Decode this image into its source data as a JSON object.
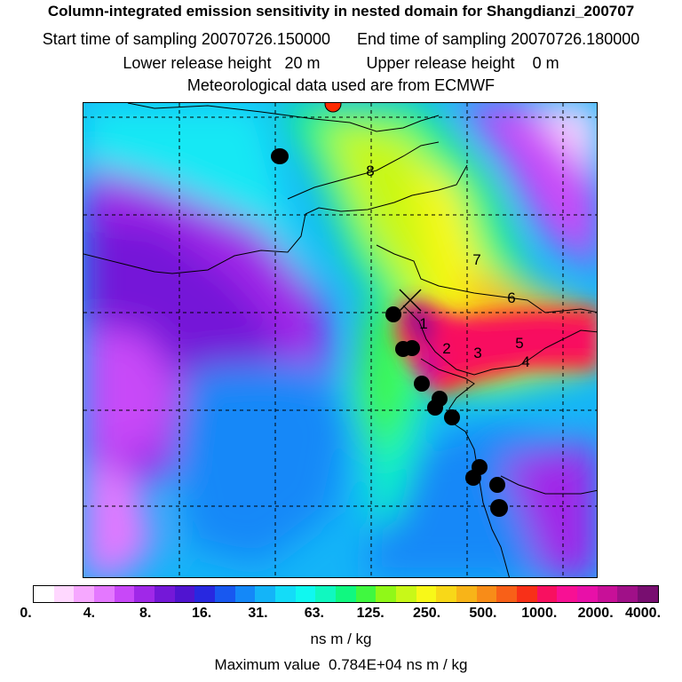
{
  "header": {
    "title": "Column-integrated emission sensitivity in nested domain for Shangdianzi_200707",
    "start_label": "Start time of sampling",
    "start_value": "20070726.150000",
    "end_label": "End time of sampling",
    "end_value": "20070726.180000",
    "lower_label": "Lower release height",
    "lower_value": "20 m",
    "upper_label": "Upper release height",
    "upper_value": "0 m",
    "met_text": "Meteorological data used are from ECMWF"
  },
  "map": {
    "receptor_icon": "x-cross-icon",
    "top_marker_color": "#ff2a00",
    "dot_color": "#000000",
    "trajectory_labels": [
      "1",
      "2",
      "3",
      "4",
      "5",
      "6",
      "7",
      "8"
    ]
  },
  "colorbar": {
    "colors": [
      "#ffffff",
      "#ffd8ff",
      "#f6a8ff",
      "#e478ff",
      "#c848f8",
      "#a028e8",
      "#7418d8",
      "#5014d0",
      "#2828e0",
      "#1858f0",
      "#1488f8",
      "#14b4f8",
      "#14dcf8",
      "#10f8f0",
      "#10f8c0",
      "#10f880",
      "#40f840",
      "#90f818",
      "#c8f818",
      "#f8f818",
      "#f8d818",
      "#f8b418",
      "#f88c18",
      "#f86018",
      "#f83018",
      "#f81060",
      "#f81094",
      "#e810a8",
      "#c81098",
      "#a01088",
      "#780e70"
    ],
    "tick_labels": [
      "0.",
      "4.",
      "8.",
      "16.",
      "31.",
      "63.",
      "125.",
      "250.",
      "500.",
      "1000.",
      "2000.",
      "4000."
    ],
    "units": "ns m / kg"
  },
  "footer": {
    "max_label": "Maximum value",
    "max_value": "0.784E+04",
    "max_units": "ns m / kg"
  }
}
